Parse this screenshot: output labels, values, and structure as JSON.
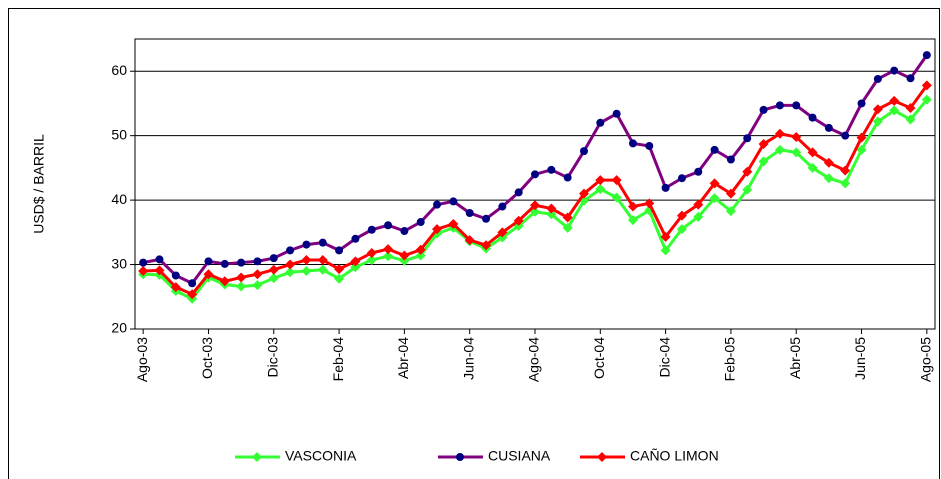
{
  "chart_data": {
    "type": "line",
    "y_label": "USD$ / BARRIL",
    "categories": [
      "Ago-03",
      null,
      null,
      null,
      "Oct-03",
      null,
      null,
      null,
      "Dic-03",
      null,
      null,
      null,
      "Feb-04",
      null,
      null,
      null,
      "Abr-04",
      null,
      null,
      null,
      "Jun-04",
      null,
      null,
      null,
      "Ago-04",
      null,
      null,
      null,
      "Oct-04",
      null,
      null,
      null,
      "Dic-04",
      null,
      null,
      null,
      "Feb-05",
      null,
      null,
      null,
      "Abr-05",
      null,
      null,
      null,
      "Jun-05",
      null,
      null,
      null,
      "Ago-05"
    ],
    "series": [
      {
        "name": "VASCONIA",
        "color": "#33ff33",
        "marker": "diamond",
        "marker_color": "#33ff33",
        "values": [
          28.5,
          28.4,
          25.9,
          24.7,
          28.0,
          26.9,
          26.6,
          26.8,
          27.9,
          28.8,
          29.0,
          29.2,
          27.8,
          29.6,
          30.7,
          31.3,
          30.6,
          31.4,
          34.8,
          35.7,
          33.6,
          32.5,
          34.2,
          36.0,
          38.2,
          37.8,
          35.7,
          39.9,
          41.7,
          40.4,
          36.9,
          38.4,
          32.2,
          35.5,
          37.4,
          40.3,
          38.3,
          41.6,
          46.0,
          47.8,
          47.4,
          45.0,
          43.4,
          42.6,
          47.8,
          52.2,
          53.9,
          52.5,
          55.6
        ]
      },
      {
        "name": "CUSIANA",
        "color": "#800080",
        "marker": "circle",
        "marker_color": "#000080",
        "values": [
          30.3,
          30.8,
          28.3,
          27.1,
          30.5,
          30.1,
          30.3,
          30.5,
          31.0,
          32.2,
          33.1,
          33.4,
          32.2,
          34.0,
          35.4,
          36.1,
          35.2,
          36.6,
          39.3,
          39.8,
          38.0,
          37.1,
          39.0,
          41.2,
          44.0,
          44.7,
          43.5,
          47.6,
          52.0,
          53.4,
          48.8,
          48.4,
          41.9,
          43.4,
          44.4,
          47.8,
          46.3,
          49.6,
          54.0,
          54.7,
          54.7,
          52.8,
          51.2,
          50.0,
          55.0,
          58.8,
          60.1,
          58.9,
          62.5
        ]
      },
      {
        "name": "CAÑO LIMON",
        "color": "#ff0000",
        "marker": "diamond",
        "marker_color": "#ff0000",
        "values": [
          29.0,
          29.1,
          26.5,
          25.4,
          28.5,
          27.4,
          28.0,
          28.5,
          29.2,
          30.0,
          30.7,
          30.7,
          29.3,
          30.5,
          31.8,
          32.4,
          31.4,
          32.3,
          35.5,
          36.3,
          33.8,
          33.0,
          35.0,
          36.8,
          39.2,
          38.7,
          37.3,
          41.0,
          43.1,
          43.1,
          39.0,
          39.5,
          34.3,
          37.6,
          39.3,
          42.6,
          41.0,
          44.4,
          48.7,
          50.3,
          49.8,
          47.4,
          45.8,
          44.6,
          49.7,
          54.1,
          55.4,
          54.3,
          57.8
        ]
      }
    ],
    "ylim": [
      20,
      65
    ],
    "yticks": [
      20,
      30,
      40,
      50,
      60
    ],
    "grid": true,
    "legend": "bottom"
  }
}
